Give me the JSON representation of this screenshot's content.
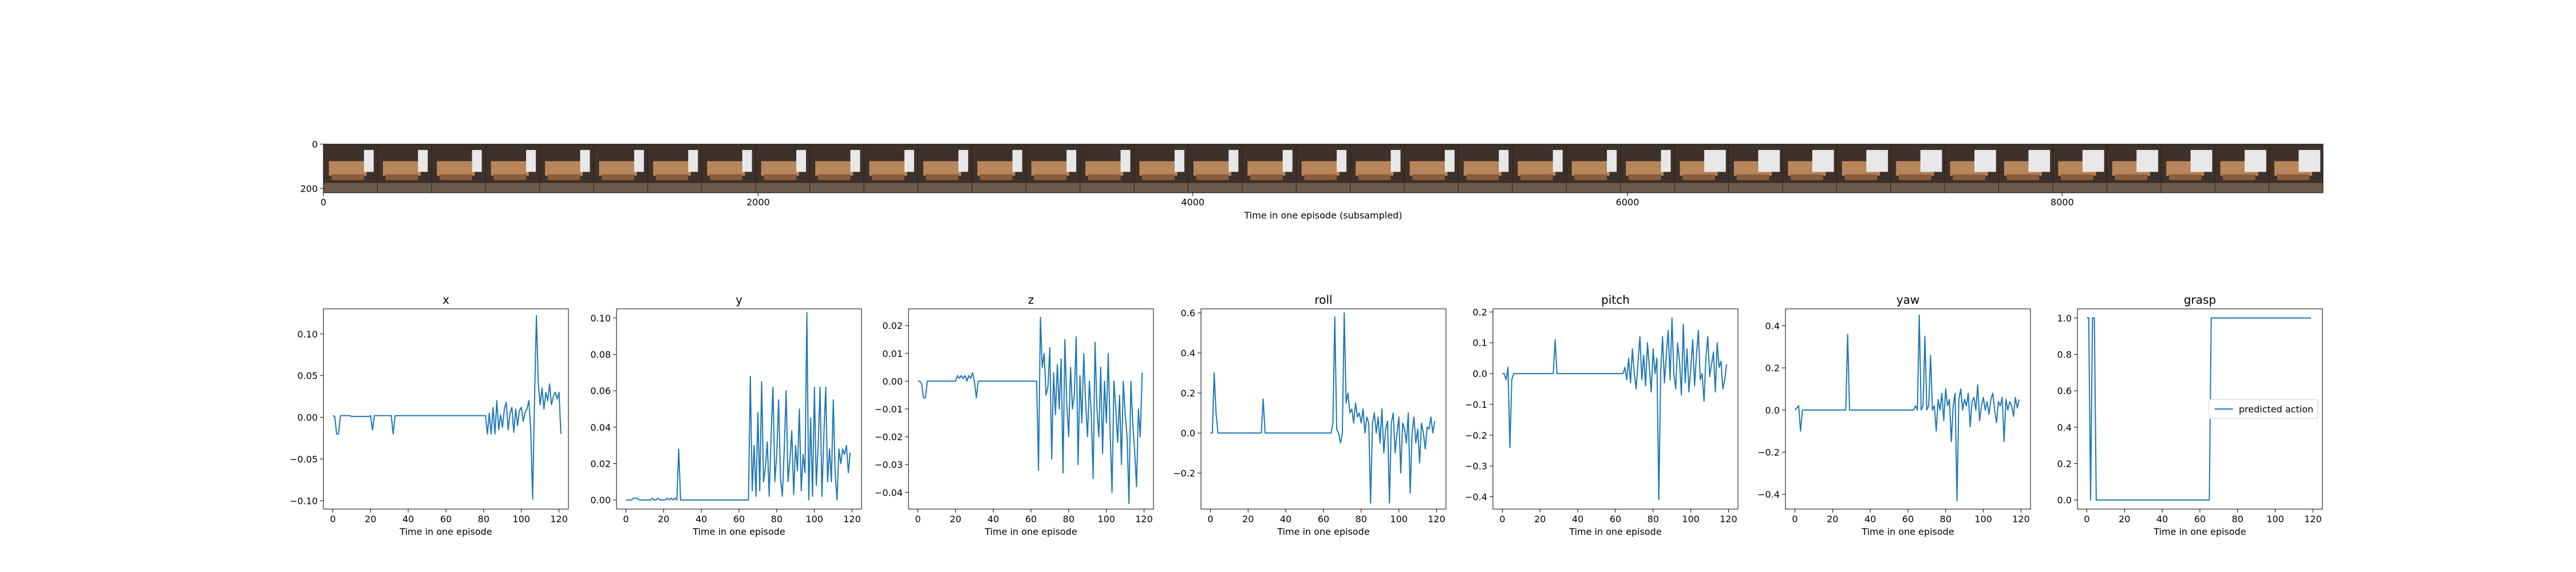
{
  "filmstrip": {
    "xlabel": "Time in one episode (subsampled)",
    "xticks": [
      0,
      2000,
      4000,
      6000,
      8000
    ],
    "yticks": [
      0,
      200
    ],
    "xlim": [
      0,
      9200
    ],
    "ylim": [
      0,
      220
    ],
    "frame_count": 37,
    "frame_colors": {
      "wall": "#3e3129",
      "tray": "#b9855a",
      "tray_dark": "#8a5d3c",
      "arm": "#e8e8e8",
      "floor": "#6b5a4d"
    }
  },
  "style": {
    "line_color": "#1f77b4",
    "axis_color": "#000000"
  },
  "chart_data": [
    {
      "type": "line",
      "title": "x",
      "xlabel": "Time in one episode",
      "ylabel": "",
      "xlim": [
        -5,
        125
      ],
      "ylim": [
        -0.11,
        0.13
      ],
      "xticks": [
        0,
        20,
        40,
        60,
        80,
        100,
        120
      ],
      "yticks": [
        -0.1,
        -0.05,
        0.0,
        0.05,
        0.1
      ],
      "yticklabels": [
        "−0.10",
        "−0.05",
        "0.00",
        "0.05",
        "0.10"
      ],
      "series": [
        {
          "values": [
            0.002,
            0.001,
            -0.02,
            -0.02,
            0.002,
            0.002,
            0.002,
            0.002,
            0.002,
            0.002,
            0.001,
            0.001,
            0.001,
            0.001,
            0.001,
            0.001,
            0.001,
            0.001,
            0.001,
            0.001,
            0.002,
            -0.015,
            0.002,
            0.002,
            0.002,
            0.002,
            0.002,
            0.002,
            0.002,
            0.002,
            0.002,
            0.002,
            -0.02,
            0.002,
            0.002,
            0.002,
            0.002,
            0.002,
            0.002,
            0.002,
            0.002,
            0.002,
            0.002,
            0.002,
            0.002,
            0.002,
            0.002,
            0.002,
            0.002,
            0.002,
            0.002,
            0.002,
            0.002,
            0.002,
            0.002,
            0.002,
            0.002,
            0.002,
            0.002,
            0.002,
            0.002,
            0.002,
            0.002,
            0.002,
            0.002,
            0.002,
            0.002,
            0.002,
            0.002,
            0.002,
            0.002,
            0.002,
            0.002,
            0.002,
            0.002,
            0.002,
            0.002,
            0.002,
            0.002,
            0.002,
            0.002,
            0.002,
            -0.02,
            0.005,
            -0.02,
            0.012,
            -0.02,
            0.02,
            -0.015,
            0.003,
            -0.012,
            0.01,
            0.018,
            -0.015,
            0.005,
            0.012,
            -0.018,
            0.01,
            -0.01,
            0.008,
            0.012,
            -0.005,
            0.006,
            0.01,
            0.02,
            -0.015,
            -0.098,
            0.02,
            0.122,
            0.04,
            0.015,
            0.035,
            0.01,
            0.03,
            0.02,
            0.04,
            0.015,
            0.025,
            0.03,
            0.022,
            0.03,
            -0.02
          ]
        }
      ]
    },
    {
      "type": "line",
      "title": "y",
      "xlabel": "Time in one episode",
      "ylabel": "",
      "xlim": [
        -5,
        125
      ],
      "ylim": [
        -0.005,
        0.105
      ],
      "xticks": [
        0,
        20,
        40,
        60,
        80,
        100,
        120
      ],
      "yticks": [
        0.0,
        0.02,
        0.04,
        0.06,
        0.08,
        0.1
      ],
      "yticklabels": [
        "0.00",
        "0.02",
        "0.04",
        "0.06",
        "0.08",
        "0.10"
      ],
      "series": [
        {
          "values": [
            0.0,
            0.0,
            0.0,
            0.0,
            0.001,
            0.001,
            0.001,
            0.0,
            0.0,
            0.0,
            0.0,
            0.0,
            0.0,
            0.0,
            0.001,
            0.0,
            0.0,
            0.001,
            0.0,
            0.0,
            0.0,
            0.0,
            0.001,
            0.0,
            0.001,
            0.0,
            0.001,
            0.0,
            0.028,
            0.0,
            0.0,
            0.0,
            0.0,
            0.0,
            0.0,
            0.0,
            0.0,
            0.0,
            0.0,
            0.0,
            0.0,
            0.0,
            0.0,
            0.0,
            0.0,
            0.0,
            0.0,
            0.0,
            0.0,
            0.0,
            0.0,
            0.0,
            0.0,
            0.0,
            0.0,
            0.0,
            0.0,
            0.0,
            0.0,
            0.0,
            0.0,
            0.0,
            0.0,
            0.0,
            0.0,
            0.0,
            0.068,
            0.005,
            0.03,
            0.002,
            0.048,
            0.005,
            0.065,
            0.01,
            0.018,
            0.032,
            0.002,
            0.035,
            0.062,
            0.01,
            0.025,
            0.055,
            0.012,
            0.002,
            0.028,
            0.06,
            0.01,
            0.022,
            0.038,
            0.003,
            0.03,
            0.016,
            0.05,
            0.005,
            0.025,
            0.015,
            0.103,
            0.0,
            0.045,
            0.002,
            0.062,
            0.008,
            0.03,
            0.062,
            0.002,
            0.035,
            0.062,
            0.01,
            0.028,
            0.01,
            0.055,
            0.015,
            0.0,
            0.028,
            0.02,
            0.028,
            0.025,
            0.03,
            0.015,
            0.026
          ]
        }
      ]
    },
    {
      "type": "line",
      "title": "z",
      "xlabel": "Time in one episode",
      "ylabel": "",
      "xlim": [
        -5,
        125
      ],
      "ylim": [
        -0.046,
        0.026
      ],
      "xticks": [
        0,
        20,
        40,
        60,
        80,
        100,
        120
      ],
      "yticks": [
        -0.04,
        -0.03,
        -0.02,
        -0.01,
        0.0,
        0.01,
        0.02
      ],
      "yticklabels": [
        "−0.04",
        "−0.03",
        "−0.02",
        "−0.01",
        "0.00",
        "0.01",
        "0.02"
      ],
      "series": [
        {
          "values": [
            0.0,
            0.0,
            -0.001,
            -0.006,
            -0.006,
            0.0,
            0.0,
            0.0,
            0.0,
            0.0,
            0.0,
            0.0,
            0.0,
            0.0,
            0.0,
            0.0,
            0.0,
            0.0,
            0.0,
            0.0,
            0.0,
            0.002,
            0.001,
            0.002,
            0.001,
            0.002,
            0.0,
            0.002,
            0.001,
            0.003,
            0.0,
            -0.006,
            0.0,
            0.0,
            0.0,
            0.0,
            0.0,
            0.0,
            0.0,
            0.0,
            0.0,
            0.0,
            0.0,
            0.0,
            0.0,
            0.0,
            0.0,
            0.0,
            0.0,
            0.0,
            0.0,
            0.0,
            0.0,
            0.0,
            0.0,
            0.0,
            0.0,
            0.0,
            0.0,
            0.0,
            0.0,
            0.0,
            0.0,
            0.0,
            -0.032,
            0.023,
            0.005,
            0.01,
            -0.005,
            -0.002,
            0.012,
            -0.028,
            0.003,
            -0.012,
            0.006,
            -0.01,
            0.008,
            -0.033,
            0.015,
            -0.008,
            -0.02,
            0.005,
            -0.01,
            -0.005,
            0.016,
            -0.03,
            0.002,
            -0.015,
            0.01,
            -0.008,
            -0.02,
            0.0,
            -0.012,
            -0.035,
            0.014,
            -0.01,
            -0.02,
            0.005,
            -0.026,
            0.0,
            -0.015,
            0.01,
            -0.018,
            -0.04,
            0.0,
            -0.01,
            -0.022,
            -0.005,
            -0.03,
            0.0,
            -0.012,
            -0.02,
            -0.044,
            0.0,
            -0.015,
            -0.025,
            -0.038,
            -0.01,
            -0.02,
            0.003
          ]
        }
      ]
    },
    {
      "type": "line",
      "title": "roll",
      "xlabel": "Time in one episode",
      "ylabel": "",
      "xlim": [
        -5,
        125
      ],
      "ylim": [
        -0.38,
        0.62
      ],
      "xticks": [
        0,
        20,
        40,
        60,
        80,
        100,
        120
      ],
      "yticks": [
        -0.2,
        0.0,
        0.2,
        0.4,
        0.6
      ],
      "yticklabels": [
        "−0.2",
        "0.0",
        "0.2",
        "0.4",
        "0.6"
      ],
      "series": [
        {
          "values": [
            0.0,
            0.0,
            0.3,
            0.1,
            0.0,
            0.0,
            0.0,
            0.0,
            0.0,
            0.0,
            0.0,
            0.0,
            0.0,
            0.0,
            0.0,
            0.0,
            0.0,
            0.0,
            0.0,
            0.0,
            0.0,
            0.0,
            0.0,
            0.0,
            0.0,
            0.0,
            0.0,
            0.0,
            0.17,
            0.0,
            0.0,
            0.0,
            0.0,
            0.0,
            0.0,
            0.0,
            0.0,
            0.0,
            0.0,
            0.0,
            0.0,
            0.0,
            0.0,
            0.0,
            0.0,
            0.0,
            0.0,
            0.0,
            0.0,
            0.0,
            0.0,
            0.0,
            0.0,
            0.0,
            0.0,
            0.0,
            0.0,
            0.0,
            0.0,
            0.0,
            0.0,
            0.0,
            0.0,
            0.0,
            0.0,
            0.05,
            0.58,
            0.02,
            0.0,
            -0.05,
            0.0,
            0.6,
            0.15,
            0.2,
            0.1,
            0.12,
            0.05,
            0.15,
            0.08,
            0.1,
            0.05,
            0.12,
            0.0,
            0.08,
            0.05,
            -0.35,
            0.05,
            0.1,
            0.0,
            0.08,
            -0.05,
            0.12,
            -0.1,
            0.02,
            0.06,
            -0.35,
            0.05,
            0.1,
            -0.1,
            0.0,
            0.08,
            -0.2,
            0.05,
            0.02,
            -0.05,
            0.1,
            -0.3,
            0.0,
            0.08,
            -0.05,
            0.02,
            -0.15,
            0.05,
            0.0,
            -0.08,
            0.03,
            0.02,
            0.08,
            0.0,
            0.06
          ]
        }
      ]
    },
    {
      "type": "line",
      "title": "pitch",
      "xlabel": "Time in one episode",
      "ylabel": "",
      "xlim": [
        -5,
        125
      ],
      "ylim": [
        -0.44,
        0.21
      ],
      "xticks": [
        0,
        20,
        40,
        60,
        80,
        100,
        120
      ],
      "yticks": [
        -0.4,
        -0.3,
        -0.2,
        -0.1,
        0.0,
        0.1,
        0.2
      ],
      "yticklabels": [
        "−0.4",
        "−0.3",
        "−0.2",
        "−0.1",
        "0.0",
        "0.1",
        "0.2"
      ],
      "series": [
        {
          "values": [
            0.0,
            0.0,
            -0.02,
            0.02,
            -0.24,
            -0.02,
            0.0,
            0.0,
            0.0,
            0.0,
            0.0,
            0.0,
            0.0,
            0.0,
            0.0,
            0.0,
            0.0,
            0.0,
            0.0,
            0.0,
            0.0,
            0.0,
            0.0,
            0.0,
            0.0,
            0.0,
            0.0,
            0.0,
            0.11,
            0.0,
            0.0,
            0.0,
            0.0,
            0.0,
            0.0,
            0.0,
            0.0,
            0.0,
            0.0,
            0.0,
            0.0,
            0.0,
            0.0,
            0.0,
            0.0,
            0.0,
            0.0,
            0.0,
            0.0,
            0.0,
            0.0,
            0.0,
            0.0,
            0.0,
            0.0,
            0.0,
            0.0,
            0.0,
            0.0,
            0.0,
            0.0,
            0.0,
            0.0,
            0.0,
            0.0,
            0.02,
            -0.02,
            0.05,
            -0.03,
            0.08,
            0.0,
            -0.05,
            0.04,
            0.12,
            -0.02,
            0.06,
            -0.04,
            0.1,
            0.02,
            -0.06,
            0.08,
            0.0,
            0.05,
            -0.41,
            0.0,
            0.12,
            -0.03,
            0.06,
            0.14,
            -0.02,
            0.18,
            0.0,
            -0.05,
            0.1,
            0.04,
            -0.07,
            0.16,
            -0.03,
            0.08,
            -0.06,
            0.02,
            0.11,
            -0.04,
            0.06,
            0.14,
            -0.02,
            0.0,
            -0.09,
            0.05,
            0.12,
            -0.01,
            0.03,
            0.07,
            -0.06,
            0.1,
            0.02,
            0.04,
            -0.05,
            -0.02,
            0.03
          ]
        }
      ]
    },
    {
      "type": "line",
      "title": "yaw",
      "xlabel": "Time in one episode",
      "ylabel": "",
      "xlim": [
        -5,
        125
      ],
      "ylim": [
        -0.47,
        0.48
      ],
      "xticks": [
        0,
        20,
        40,
        60,
        80,
        100,
        120
      ],
      "yticks": [
        -0.4,
        -0.2,
        0.0,
        0.2,
        0.4
      ],
      "yticklabels": [
        "−0.4",
        "−0.2",
        "0.0",
        "0.2",
        "0.4"
      ],
      "series": [
        {
          "values": [
            0.0,
            0.01,
            0.02,
            -0.1,
            0.0,
            0.0,
            0.0,
            0.0,
            0.0,
            0.0,
            0.0,
            0.0,
            0.0,
            0.0,
            0.0,
            0.0,
            0.0,
            0.0,
            0.0,
            0.0,
            0.0,
            0.0,
            0.0,
            0.0,
            0.0,
            0.0,
            0.0,
            0.0,
            0.36,
            0.0,
            0.0,
            0.0,
            0.0,
            0.0,
            0.0,
            0.0,
            0.0,
            0.0,
            0.0,
            0.0,
            0.0,
            0.0,
            0.0,
            0.0,
            0.0,
            0.0,
            0.0,
            0.0,
            0.0,
            0.0,
            0.0,
            0.0,
            0.0,
            0.0,
            0.0,
            0.0,
            0.0,
            0.0,
            0.0,
            0.0,
            0.0,
            0.0,
            0.0,
            0.0,
            0.02,
            0.0,
            0.45,
            0.0,
            0.02,
            0.35,
            0.0,
            0.02,
            0.26,
            0.0,
            0.02,
            -0.1,
            0.05,
            0.0,
            0.08,
            -0.05,
            0.1,
            0.02,
            0.05,
            -0.15,
            0.02,
            0.08,
            -0.43,
            0.05,
            0.1,
            0.0,
            0.05,
            0.02,
            0.08,
            -0.08,
            0.04,
            0.06,
            0.0,
            0.12,
            -0.05,
            0.02,
            0.06,
            0.0,
            0.04,
            -0.02,
            0.05,
            0.08,
            0.0,
            -0.06,
            0.04,
            0.02,
            0.06,
            -0.15,
            0.05,
            0.0,
            0.04,
            0.02,
            -0.03,
            0.06,
            0.01,
            0.05
          ]
        }
      ]
    },
    {
      "type": "line",
      "title": "grasp",
      "xlabel": "Time in one episode",
      "ylabel": "",
      "xlim": [
        -5,
        125
      ],
      "ylim": [
        -0.05,
        1.05
      ],
      "xticks": [
        0,
        20,
        40,
        60,
        80,
        100,
        120
      ],
      "yticks": [
        0.0,
        0.2,
        0.4,
        0.6,
        0.8,
        1.0
      ],
      "yticklabels": [
        "0.0",
        "0.2",
        "0.4",
        "0.6",
        "0.8",
        "1.0"
      ],
      "legend": "predicted action",
      "legend_loc": "center right",
      "series": [
        {
          "name": "predicted action",
          "values": [
            1,
            1,
            0,
            1,
            1,
            0,
            0,
            0,
            0,
            0,
            0,
            0,
            0,
            0,
            0,
            0,
            0,
            0,
            0,
            0,
            0,
            0,
            0,
            0,
            0,
            0,
            0,
            0,
            0,
            0,
            0,
            0,
            0,
            0,
            0,
            0,
            0,
            0,
            0,
            0,
            0,
            0,
            0,
            0,
            0,
            0,
            0,
            0,
            0,
            0,
            0,
            0,
            0,
            0,
            0,
            0,
            0,
            0,
            0,
            0,
            0,
            0,
            0,
            0,
            0,
            0,
            1,
            1,
            1,
            1,
            1,
            1,
            1,
            1,
            1,
            1,
            1,
            1,
            1,
            1,
            1,
            1,
            1,
            1,
            1,
            1,
            1,
            1,
            1,
            1,
            1,
            1,
            1,
            1,
            1,
            1,
            1,
            1,
            1,
            1,
            1,
            1,
            1,
            1,
            1,
            1,
            1,
            1,
            1,
            1,
            1,
            1,
            1,
            1,
            1,
            1,
            1,
            1,
            1,
            1
          ]
        }
      ]
    }
  ]
}
